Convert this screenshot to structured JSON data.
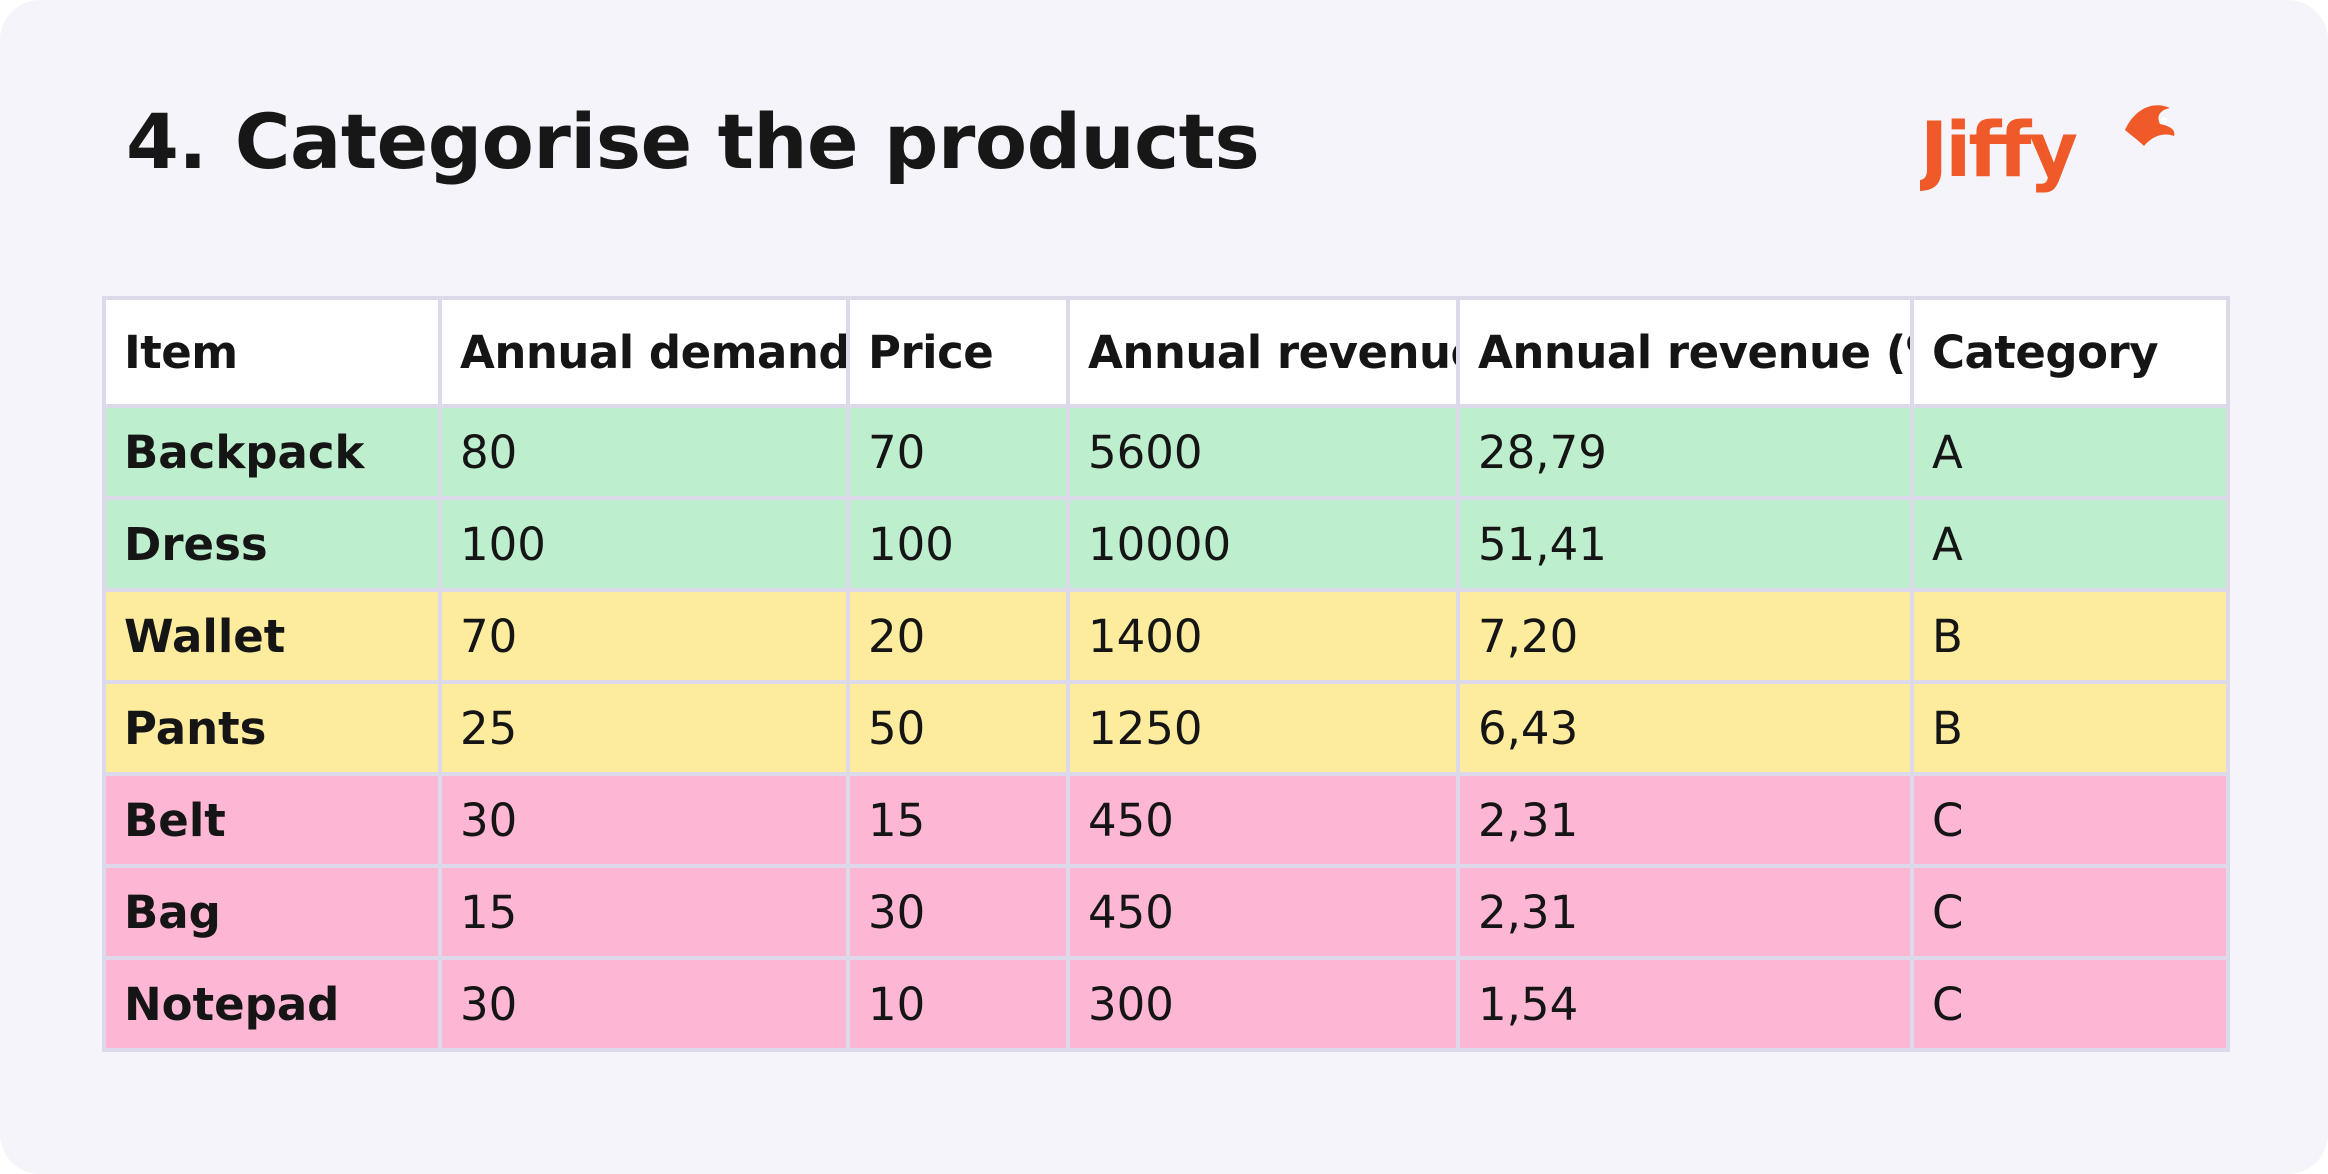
{
  "heading": {
    "number": "4.",
    "text": "Categorise the products"
  },
  "brand": {
    "name": "Jiffy",
    "color": "#f05a28"
  },
  "category_colors": {
    "A": "#bdeecd",
    "B": "#fdec9e",
    "C": "#feb6d5"
  },
  "table": {
    "headers": [
      "Item",
      "Annual demand",
      "Price",
      "Annual revenue",
      "Annual revenue (%)",
      "Category"
    ],
    "rows": [
      {
        "item": "Backpack",
        "demand": "80",
        "price": "70",
        "revenue": "5600",
        "revenue_pct": "28,79",
        "category": "A"
      },
      {
        "item": "Dress",
        "demand": "100",
        "price": "100",
        "revenue": "10000",
        "revenue_pct": "51,41",
        "category": "A"
      },
      {
        "item": "Wallet",
        "demand": "70",
        "price": "20",
        "revenue": "1400",
        "revenue_pct": "7,20",
        "category": "B"
      },
      {
        "item": "Pants",
        "demand": "25",
        "price": "50",
        "revenue": "1250",
        "revenue_pct": "6,43",
        "category": "B"
      },
      {
        "item": "Belt",
        "demand": "30",
        "price": "15",
        "revenue": "450",
        "revenue_pct": "2,31",
        "category": "C"
      },
      {
        "item": "Bag",
        "demand": "15",
        "price": "30",
        "revenue": "450",
        "revenue_pct": "2,31",
        "category": "C"
      },
      {
        "item": "Notepad",
        "demand": "30",
        "price": "10",
        "revenue": "300",
        "revenue_pct": "1,54",
        "category": "C"
      }
    ]
  }
}
